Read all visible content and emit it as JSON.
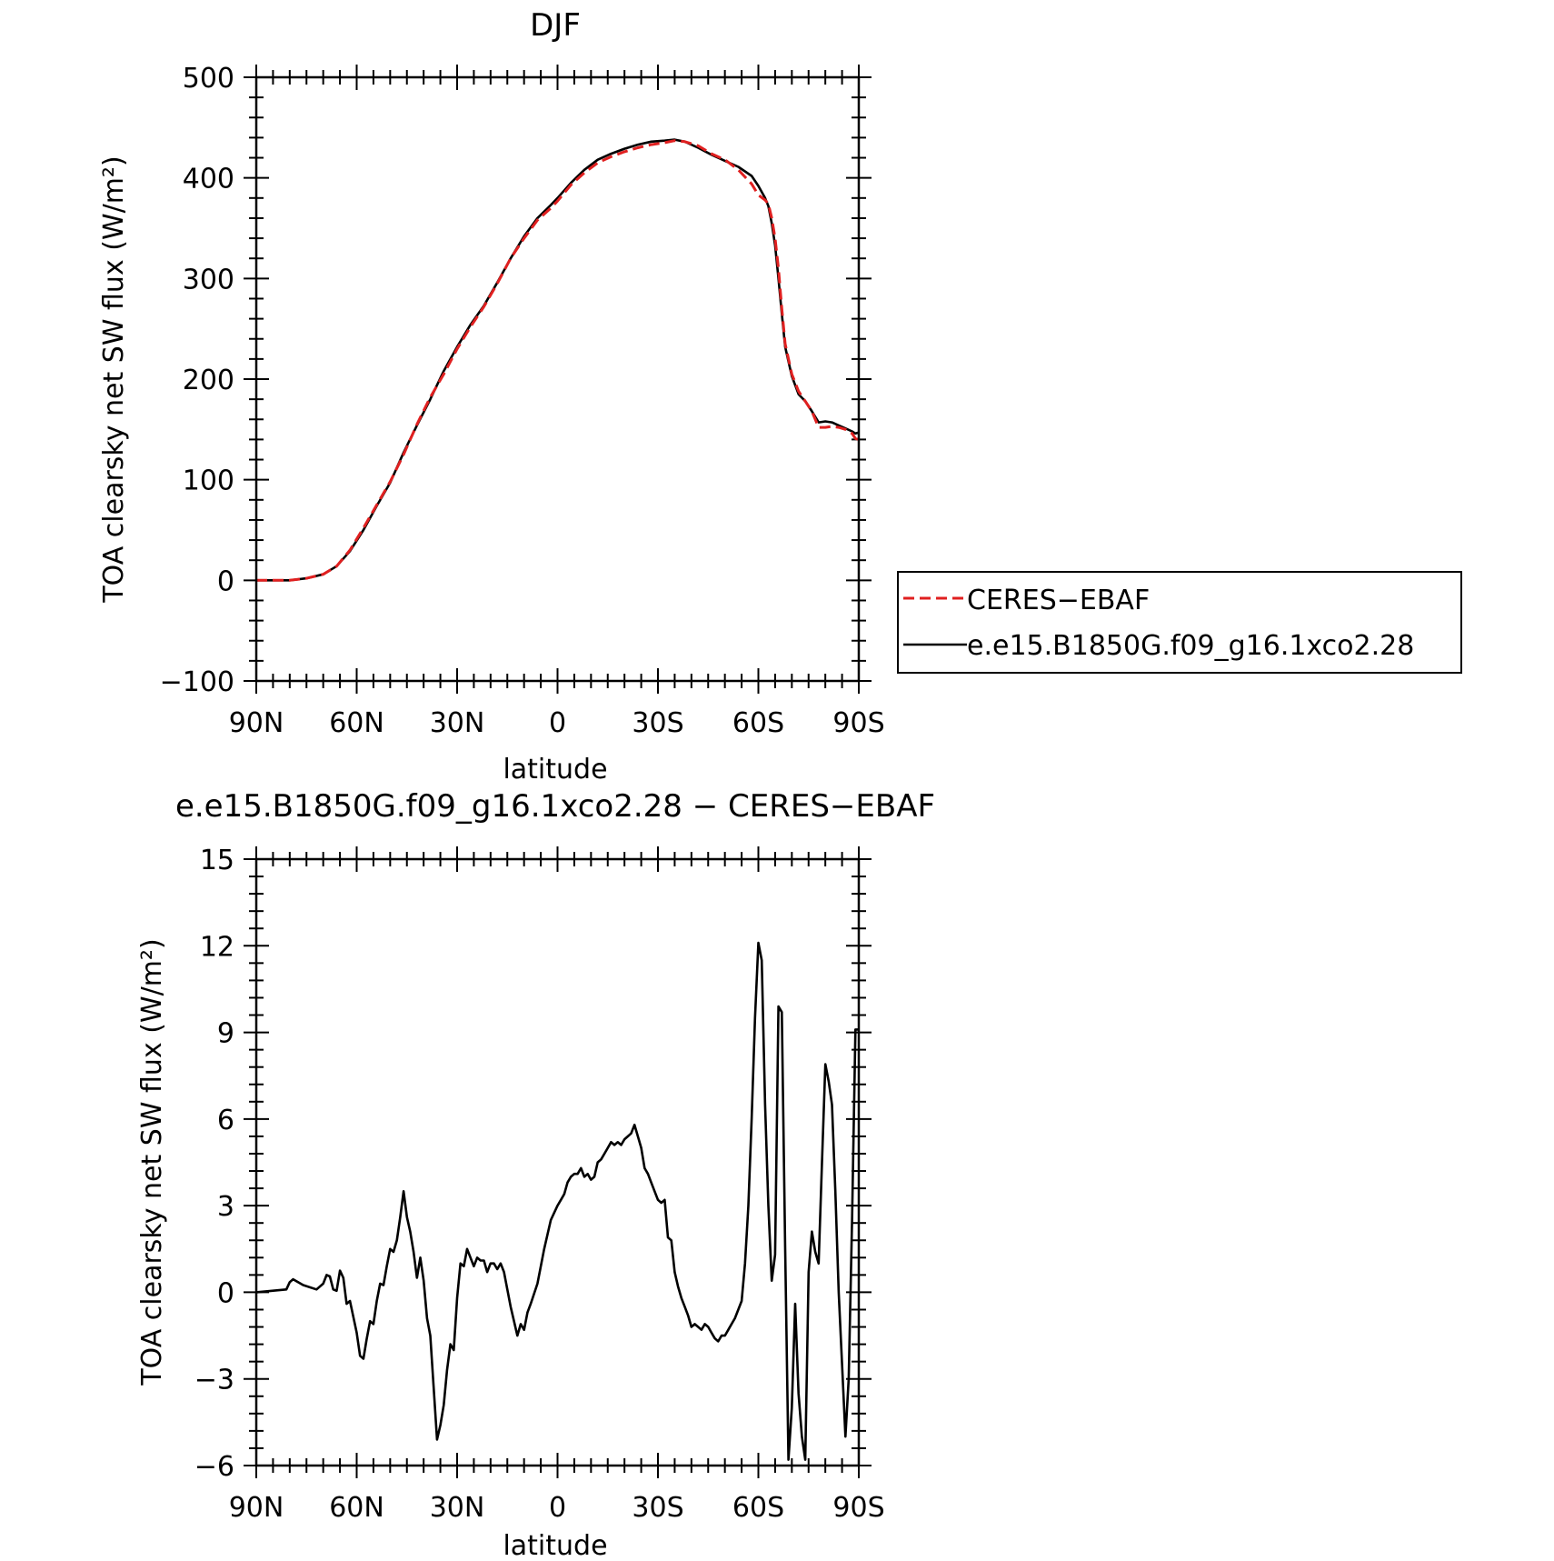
{
  "chart_data": [
    {
      "type": "line",
      "title": "DJF",
      "xlabel": "latitude",
      "ylabel": "TOA clearsky net SW flux (W/m²)",
      "xlim": [
        90,
        -90
      ],
      "ylim": [
        -100,
        500
      ],
      "x_tick_values": [
        90,
        60,
        30,
        0,
        -30,
        -60,
        -90
      ],
      "x_tick_labels": [
        "90N",
        "60N",
        "30N",
        "0",
        "30S",
        "60S",
        "90S"
      ],
      "y_tick_values": [
        -100,
        0,
        100,
        200,
        300,
        400,
        500
      ],
      "y_tick_labels": [
        "−100",
        "0",
        "100",
        "200",
        "300",
        "400",
        "500"
      ],
      "series": [
        {
          "name": "CERES−EBAF",
          "color": "#e02020",
          "dash": "dashed",
          "x": [
            90,
            85,
            80,
            75,
            70,
            66,
            62,
            58,
            54,
            50,
            46,
            42,
            38,
            34,
            30,
            26,
            22,
            18,
            14,
            10,
            6,
            2,
            0,
            -4,
            -8,
            -12,
            -16,
            -20,
            -24,
            -28,
            -32,
            -35,
            -38,
            -42,
            -46,
            -50,
            -54,
            -58,
            -60,
            -62,
            -63,
            -64,
            -65,
            -66,
            -67,
            -68,
            -70,
            -72,
            -74,
            -76,
            -78,
            -80,
            -82,
            -84,
            -86,
            -88,
            -89,
            -90
          ],
          "y": [
            0,
            0,
            0,
            2,
            6,
            14,
            30,
            52,
            75,
            98,
            125,
            155,
            182,
            205,
            230,
            252,
            272,
            295,
            320,
            340,
            358,
            370,
            377,
            393,
            405,
            415,
            421,
            426,
            430,
            433,
            435,
            437,
            436,
            432,
            424,
            418,
            408,
            394,
            383,
            378,
            374,
            360,
            340,
            310,
            270,
            235,
            205,
            188,
            178,
            168,
            152,
            152,
            153,
            152,
            150,
            146,
            141,
            140
          ]
        },
        {
          "name": "e.e15.B1850G.f09_g16.1xco2.28",
          "color": "#000000",
          "dash": "solid",
          "x": [
            90,
            85,
            80,
            75,
            70,
            66,
            62,
            58,
            54,
            50,
            46,
            42,
            38,
            34,
            30,
            26,
            22,
            18,
            14,
            10,
            6,
            2,
            0,
            -4,
            -8,
            -12,
            -16,
            -20,
            -24,
            -28,
            -32,
            -35,
            -38,
            -42,
            -46,
            -50,
            -54,
            -58,
            -60,
            -62,
            -63,
            -64,
            -65,
            -66,
            -67,
            -68,
            -70,
            -72,
            -74,
            -76,
            -78,
            -80,
            -82,
            -84,
            -86,
            -88,
            -89,
            -90
          ],
          "y": [
            0,
            0,
            0,
            2,
            6,
            14,
            29,
            50,
            74,
            97,
            127,
            154,
            180,
            208,
            232,
            254,
            273,
            296,
            320,
            342,
            360,
            373,
            380,
            395,
            408,
            418,
            424,
            429,
            433,
            436,
            437,
            438,
            436,
            430,
            423,
            417,
            411,
            402,
            392,
            380,
            372,
            355,
            333,
            300,
            265,
            232,
            203,
            185,
            178,
            168,
            157,
            158,
            157,
            154,
            151,
            148,
            146,
            147
          ]
        }
      ]
    },
    {
      "type": "line",
      "title": "e.e15.B1850G.f09_g16.1xco2.28 − CERES−EBAF",
      "xlabel": "latitude",
      "ylabel": "TOA clearsky net SW flux (W/m²)",
      "xlim": [
        90,
        -90
      ],
      "ylim": [
        -6,
        15
      ],
      "x_tick_values": [
        90,
        60,
        30,
        0,
        -30,
        -60,
        -90
      ],
      "x_tick_labels": [
        "90N",
        "60N",
        "30N",
        "0",
        "30S",
        "60S",
        "90S"
      ],
      "y_tick_values": [
        -6,
        -3,
        0,
        3,
        6,
        9,
        12,
        15
      ],
      "y_tick_labels": [
        "−6",
        "−3",
        "0",
        "3",
        "6",
        "9",
        "12",
        "15"
      ],
      "series": [
        {
          "color": "#000000",
          "dash": "solid",
          "x": [
            90,
            81,
            80,
            79,
            76,
            72,
            70,
            69,
            68,
            67,
            66,
            65,
            64,
            63,
            62,
            60,
            59,
            58,
            57,
            56,
            55,
            54,
            53,
            52,
            51,
            50,
            49,
            48,
            47,
            46,
            45,
            44,
            43,
            42,
            41,
            40,
            39,
            38,
            36,
            35,
            34,
            33,
            32,
            31,
            30,
            29,
            28,
            27,
            26,
            25,
            24,
            23,
            22,
            21,
            20,
            19,
            18,
            17,
            16,
            14,
            12,
            11,
            10,
            9,
            8,
            6,
            4,
            2,
            0,
            -1,
            -2,
            -3,
            -4,
            -5,
            -6,
            -7,
            -8,
            -9,
            -10,
            -11,
            -12,
            -13,
            -14,
            -15,
            -16,
            -17,
            -18,
            -19,
            -20,
            -21,
            -22,
            -23,
            -24,
            -25,
            -26,
            -27,
            -28,
            -29,
            -30,
            -31,
            -32,
            -33,
            -34,
            -35,
            -36,
            -37,
            -38,
            -39,
            -40,
            -41,
            -42,
            -43,
            -44,
            -45,
            -46,
            -47,
            -48,
            -49,
            -50,
            -51,
            -52,
            -53,
            -54,
            -55,
            -56,
            -57,
            -58,
            -59,
            -60,
            -61,
            -62,
            -63,
            -64,
            -65,
            -66,
            -67,
            -68,
            -69,
            -70,
            -71,
            -72,
            -73,
            -74,
            -75,
            -76,
            -77,
            -78,
            -79,
            -80,
            -81,
            -82,
            -83,
            -84,
            -85,
            -86,
            -87,
            -88,
            -89,
            -90
          ],
          "y": [
            0,
            0.1,
            0.35,
            0.45,
            0.25,
            0.1,
            0.3,
            0.6,
            0.55,
            0.1,
            0.05,
            0.75,
            0.5,
            -0.4,
            -0.3,
            -1.4,
            -2.2,
            -2.3,
            -1.6,
            -1.0,
            -1.1,
            -0.3,
            0.3,
            0.25,
            0.9,
            1.5,
            1.4,
            1.8,
            2.6,
            3.5,
            2.6,
            2.1,
            1.4,
            0.5,
            1.2,
            0.4,
            -0.9,
            -1.5,
            -5.1,
            -4.6,
            -3.9,
            -2.7,
            -1.8,
            -2.0,
            -0.2,
            1.0,
            0.9,
            1.5,
            1.2,
            0.9,
            1.2,
            1.1,
            1.1,
            0.7,
            1.0,
            1.0,
            0.8,
            1.0,
            0.7,
            -0.5,
            -1.5,
            -1.1,
            -1.3,
            -0.7,
            -0.4,
            0.3,
            1.5,
            2.5,
            3.0,
            3.2,
            3.4,
            3.8,
            4.0,
            4.1,
            4.1,
            4.3,
            4.0,
            4.1,
            3.9,
            4.0,
            4.5,
            4.6,
            4.8,
            5.0,
            5.2,
            5.1,
            5.2,
            5.1,
            5.3,
            5.4,
            5.5,
            5.8,
            5.4,
            5.0,
            4.3,
            4.1,
            3.8,
            3.5,
            3.2,
            3.1,
            3.2,
            1.9,
            1.8,
            0.7,
            0.2,
            -0.2,
            -0.5,
            -0.8,
            -1.2,
            -1.1,
            -1.2,
            -1.3,
            -1.1,
            -1.2,
            -1.4,
            -1.6,
            -1.7,
            -1.5,
            -1.5,
            -1.3,
            -1.1,
            -0.9,
            -0.6,
            -0.3,
            1.0,
            3.0,
            6.0,
            9.5,
            12.1,
            11.5,
            6.5,
            3.0,
            0.4,
            1.3,
            9.9,
            9.7,
            1.5,
            -5.8,
            -4.0,
            -0.4,
            -3.5,
            -5.0,
            -5.8,
            0.7,
            2.1,
            1.4,
            1.0,
            4.5,
            7.9,
            7.3,
            6.5,
            3.5,
            0.0,
            -2.5,
            -5.0,
            -3.0,
            2.5,
            9.1,
            9.1
          ]
        }
      ]
    }
  ]
}
